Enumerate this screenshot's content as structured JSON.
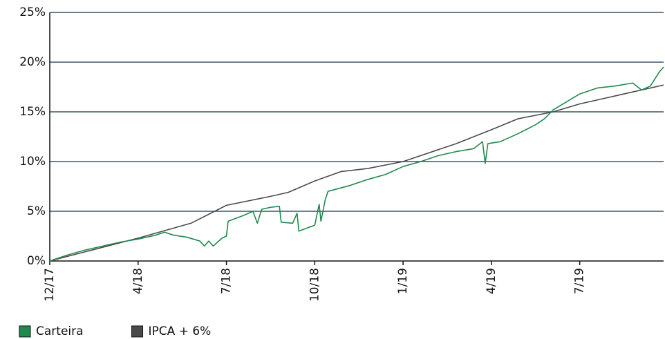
{
  "chart_data": {
    "type": "line",
    "xlim": [
      0,
      6.95
    ],
    "xticks": [
      {
        "value": 0,
        "label": "12/17"
      },
      {
        "value": 1,
        "label": "4/18"
      },
      {
        "value": 2,
        "label": "7/18"
      },
      {
        "value": 3,
        "label": "10/18"
      },
      {
        "value": 4,
        "label": "1/19"
      },
      {
        "value": 5,
        "label": "4/19"
      },
      {
        "value": 6,
        "label": "7/19"
      }
    ],
    "ylim": [
      0,
      25
    ],
    "yticks": [
      {
        "value": 0,
        "label": "0%"
      },
      {
        "value": 5,
        "label": "5%"
      },
      {
        "value": 10,
        "label": "10%"
      },
      {
        "value": 15,
        "label": "15%"
      },
      {
        "value": 20,
        "label": "20%"
      },
      {
        "value": 25,
        "label": "25%"
      }
    ],
    "grid": true,
    "legend": "bottom-left",
    "series": [
      {
        "name": "Carteira",
        "color": "#1e8a4c",
        "x": [
          0,
          0.2,
          0.4,
          0.6,
          0.8,
          1.0,
          1.2,
          1.3,
          1.4,
          1.55,
          1.7,
          1.75,
          1.8,
          1.85,
          1.95,
          2.0,
          2.02,
          2.2,
          2.3,
          2.35,
          2.4,
          2.5,
          2.6,
          2.62,
          2.75,
          2.8,
          2.82,
          3.0,
          3.05,
          3.07,
          3.12,
          3.15,
          3.4,
          3.6,
          3.8,
          4.0,
          4.2,
          4.4,
          4.6,
          4.8,
          4.9,
          4.93,
          4.96,
          5.1,
          5.3,
          5.5,
          5.6,
          5.7,
          5.85,
          6.0,
          6.2,
          6.4,
          6.6,
          6.7,
          6.8,
          6.9,
          6.95
        ],
        "values": [
          0,
          0.6,
          1.1,
          1.5,
          1.9,
          2.2,
          2.6,
          2.9,
          2.6,
          2.4,
          2.0,
          1.5,
          2.0,
          1.5,
          2.3,
          2.5,
          4.0,
          4.6,
          5.0,
          3.8,
          5.2,
          5.4,
          5.5,
          3.9,
          3.8,
          4.8,
          3.0,
          3.6,
          5.7,
          4.0,
          6.2,
          7.0,
          7.6,
          8.2,
          8.7,
          9.5,
          10.0,
          10.6,
          11.0,
          11.3,
          12.0,
          9.8,
          11.8,
          12.0,
          12.8,
          13.7,
          14.3,
          15.2,
          16.0,
          16.8,
          17.4,
          17.6,
          17.9,
          17.2,
          17.6,
          19.0,
          19.5
        ]
      },
      {
        "name": "IPCA + 6%",
        "color": "#4a4a4a",
        "x": [
          0,
          1,
          1.6,
          2,
          2.5,
          2.7,
          3,
          3.3,
          3.6,
          4,
          4.6,
          5,
          5.3,
          5.7,
          6,
          6.5,
          6.95
        ],
        "values": [
          0,
          2.3,
          3.8,
          5.6,
          6.5,
          6.9,
          8.05,
          9.0,
          9.3,
          10.0,
          11.8,
          13.2,
          14.3,
          15.0,
          15.8,
          16.8,
          17.7
        ]
      }
    ]
  }
}
